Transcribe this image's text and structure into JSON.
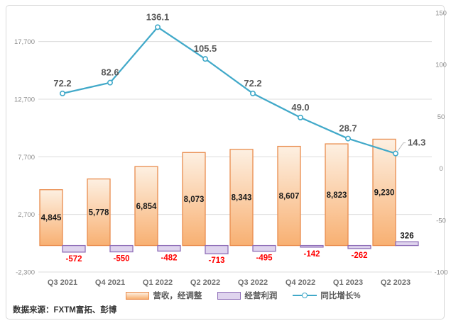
{
  "chart_data": {
    "type": "combo",
    "categories": [
      "Q3 2021",
      "Q4 2021",
      "Q1 2022",
      "Q2 2022",
      "Q3 2022",
      "Q4 2022",
      "Q1 2023",
      "Q2 2023"
    ],
    "series": [
      {
        "name": "营收，经调整",
        "chart_type": "bar",
        "axis": "left",
        "values": [
          4845,
          5778,
          6854,
          8073,
          8343,
          8607,
          8823,
          9230
        ],
        "labels": [
          "4,845",
          "5,778",
          "6,854",
          "8,073",
          "8,343",
          "8,607",
          "8,823",
          "9,230"
        ]
      },
      {
        "name": "经营利润",
        "chart_type": "bar",
        "axis": "left",
        "values": [
          -572,
          -550,
          -482,
          -713,
          -495,
          -142,
          -262,
          326
        ],
        "labels": [
          "-572",
          "-550",
          "-482",
          "-713",
          "-495",
          "-142",
          "-262",
          "326"
        ]
      },
      {
        "name": "同比增长%",
        "chart_type": "line",
        "axis": "right",
        "values": [
          72.2,
          82.6,
          136.1,
          105.5,
          72.2,
          49.0,
          28.7,
          14.3
        ],
        "labels": [
          "72.2",
          "82.6",
          "136.1",
          "105.5",
          "72.2",
          "49.0",
          "28.7",
          "14.3"
        ]
      }
    ],
    "left_axis": {
      "min": -2300,
      "max": 20200,
      "ticks": [
        {
          "v": -2300,
          "label": "-2,300"
        },
        {
          "v": 2700,
          "label": "2,700"
        },
        {
          "v": 7700,
          "label": "7,700"
        },
        {
          "v": 12700,
          "label": "12,700"
        },
        {
          "v": 17700,
          "label": "17,700"
        }
      ]
    },
    "right_axis": {
      "min": -100,
      "max": 150,
      "ticks": [
        {
          "v": 150,
          "label": "150"
        },
        {
          "v": 100,
          "label": "100"
        },
        {
          "v": 50,
          "label": "50"
        },
        {
          "v": 0,
          "label": "0"
        },
        {
          "v": -50,
          "label": "-50"
        },
        {
          "v": -100,
          "label": "-100"
        }
      ]
    },
    "gridlines": true,
    "legend_position": "bottom",
    "negative_labels_shown_red": true,
    "last_line_label_has_leader": true
  },
  "footer": {
    "source_label": "数据来源：FXTM富拓、彭博"
  },
  "colors": {
    "revenue_fill_top": "#FDF0E2",
    "revenue_fill_bottom": "#F8B072",
    "revenue_border": "#E98C4D",
    "profit_fill": "#DFD4EE",
    "profit_border": "#8F6FB8",
    "growth_line": "#41A9C9",
    "marker_fill": "#FFFFFF",
    "negative_label": "#FF0000",
    "value_label": "#1A1A1A",
    "growth_label": "#595959",
    "axis_tick_text": "#8C8C8C",
    "category_text": "#6E6E6E",
    "gridline": "#DCDCDC",
    "frame_border": "#D9D9D9",
    "leader_line": "#BFBFBF",
    "legend_text": "#595959",
    "source_text": "#333333"
  }
}
